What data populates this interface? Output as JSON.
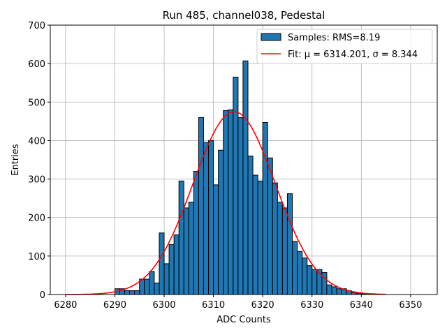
{
  "chart_data": {
    "type": "bar",
    "title": "Run 485, channel038, Pedestal",
    "xlabel": "ADC Counts",
    "ylabel": "Entries",
    "xlim": [
      6276.9,
      6355.4
    ],
    "ylim": [
      0,
      700
    ],
    "grid": true,
    "xticks": [
      6280,
      6290,
      6300,
      6310,
      6320,
      6330,
      6340,
      6350
    ],
    "yticks": [
      0,
      100,
      200,
      300,
      400,
      500,
      600,
      700
    ],
    "bin_width": 1,
    "bin_start": 6290,
    "values": [
      15,
      15,
      10,
      10,
      10,
      40,
      40,
      60,
      30,
      160,
      80,
      130,
      155,
      295,
      225,
      240,
      320,
      460,
      395,
      400,
      285,
      375,
      478,
      480,
      565,
      460,
      607,
      360,
      310,
      295,
      447,
      355,
      290,
      240,
      225,
      262,
      138,
      112,
      95,
      75,
      65,
      65,
      57,
      25,
      20,
      15,
      15,
      10,
      5,
      3,
      2
    ],
    "fit": {
      "mu": 6314.201,
      "sigma": 8.344,
      "amplitude": 475,
      "range": [
        6280,
        6345
      ]
    },
    "legend": {
      "placement": "top-right",
      "entries": [
        "Samples: RMS=8.19",
        "Fit: μ = 6314.201, σ = 8.344"
      ]
    },
    "colors": {
      "bar": "#1f77b4",
      "fit": "#ff0000",
      "grid": "#b0b0b0"
    }
  }
}
